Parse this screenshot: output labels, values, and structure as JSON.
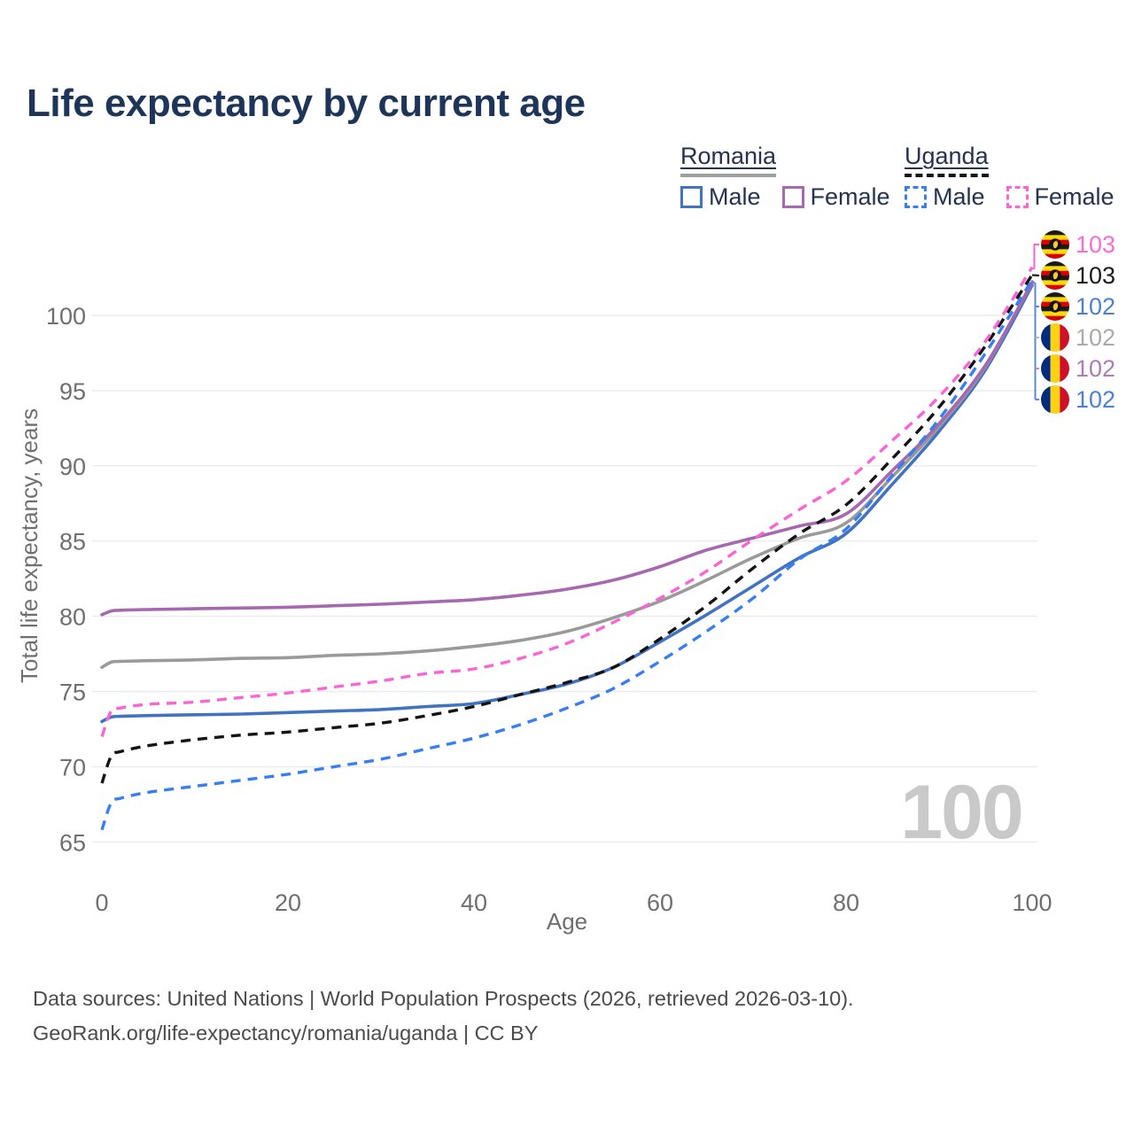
{
  "title": "Life expectancy by current age",
  "watermark": "100",
  "legend": {
    "position": "top-right",
    "groups": [
      {
        "label": "Romania",
        "line_style": "solid",
        "line_color": "#9e9e9e",
        "items": [
          {
            "label": "Male",
            "color": "#4273c0"
          },
          {
            "label": "Female",
            "color": "#a668ae"
          }
        ]
      },
      {
        "label": "Uganda",
        "line_style": "dashed",
        "line_color": "#141414",
        "items": [
          {
            "label": "Male",
            "color": "#377ef2"
          },
          {
            "label": "Female",
            "color": "#fa64d4"
          }
        ]
      }
    ]
  },
  "chart_data": {
    "type": "line",
    "title": "Life expectancy by current age",
    "xlabel": "Age",
    "ylabel": "Total life expectancy, years",
    "xlim": [
      0,
      100
    ],
    "ylim": [
      63.5,
      104.5
    ],
    "x_ticks": [
      0,
      20,
      40,
      60,
      80,
      100
    ],
    "y_ticks": [
      65,
      70,
      75,
      80,
      85,
      90,
      95,
      100
    ],
    "grid": true,
    "x": [
      0,
      1,
      2,
      5,
      10,
      15,
      20,
      25,
      30,
      35,
      40,
      45,
      50,
      55,
      60,
      65,
      70,
      75,
      80,
      85,
      90,
      95,
      100
    ],
    "series": [
      {
        "id": "romania_male",
        "name": "Romania Male",
        "country": "Romania",
        "sex": "male",
        "color": "#4273c0",
        "dash": false,
        "values": [
          73.0,
          73.3,
          73.35,
          73.4,
          73.45,
          73.5,
          73.6,
          73.7,
          73.8,
          74.0,
          74.2,
          74.8,
          75.5,
          76.6,
          78.3,
          80.1,
          82.0,
          83.9,
          85.5,
          88.8,
          92.3,
          96.4,
          102.0
        ]
      },
      {
        "id": "romania_female",
        "name": "Romania Female",
        "country": "Romania",
        "sex": "female",
        "color": "#a668ae",
        "dash": false,
        "values": [
          80.1,
          80.35,
          80.4,
          80.45,
          80.5,
          80.55,
          80.6,
          80.7,
          80.8,
          80.95,
          81.1,
          81.4,
          81.8,
          82.4,
          83.3,
          84.4,
          85.2,
          86.0,
          86.8,
          89.7,
          92.8,
          96.7,
          102.15
        ]
      },
      {
        "id": "romania_both",
        "name": "Romania Both sexes",
        "country": "Romania",
        "sex": "both",
        "color": "#9a9a9a",
        "dash": false,
        "values": [
          76.6,
          76.95,
          77.0,
          77.05,
          77.1,
          77.2,
          77.25,
          77.4,
          77.5,
          77.7,
          78.0,
          78.4,
          79.0,
          79.9,
          81.0,
          82.4,
          83.9,
          85.2,
          86.2,
          89.3,
          92.6,
          96.6,
          102.25
        ]
      },
      {
        "id": "uganda_male",
        "name": "Uganda Male",
        "country": "Uganda",
        "sex": "male",
        "color": "#377ef2",
        "dash": true,
        "values": [
          65.8,
          67.6,
          67.9,
          68.3,
          68.7,
          69.1,
          69.5,
          70.0,
          70.5,
          71.2,
          71.9,
          72.8,
          73.9,
          75.2,
          77.0,
          79.0,
          81.2,
          83.8,
          85.8,
          89.4,
          93.1,
          97.5,
          102.35
        ]
      },
      {
        "id": "uganda_female",
        "name": "Uganda Female",
        "country": "Uganda",
        "sex": "female",
        "color": "#fa64d4",
        "dash": true,
        "values": [
          72.0,
          73.7,
          73.9,
          74.15,
          74.3,
          74.6,
          74.9,
          75.3,
          75.7,
          76.2,
          76.5,
          77.2,
          78.2,
          79.6,
          81.2,
          83.0,
          85.1,
          87.1,
          89.0,
          91.7,
          94.6,
          98.3,
          103.2
        ]
      },
      {
        "id": "uganda_both",
        "name": "Uganda Both sexes",
        "country": "Uganda",
        "sex": "both",
        "color": "#141414",
        "dash": true,
        "values": [
          68.9,
          70.7,
          71.0,
          71.4,
          71.8,
          72.1,
          72.3,
          72.6,
          72.9,
          73.4,
          74.0,
          74.8,
          75.6,
          76.6,
          78.5,
          80.7,
          83.2,
          85.5,
          87.4,
          90.5,
          93.9,
          98.0,
          102.7
        ]
      }
    ]
  },
  "end_labels": [
    {
      "series": "uganda_female",
      "value": "103",
      "color": "#fa6bd4",
      "flag": "uganda-flag"
    },
    {
      "series": "uganda_both",
      "value": "103",
      "color": "#1a1a1a",
      "flag": "uganda-flag"
    },
    {
      "series": "uganda_male",
      "value": "102",
      "color": "#4a80d9",
      "flag": "uganda-flag"
    },
    {
      "series": "romania_both",
      "value": "102",
      "color": "#ababab",
      "flag": "romania-flag"
    },
    {
      "series": "romania_female",
      "value": "102",
      "color": "#ad7cb5",
      "flag": "romania-flag"
    },
    {
      "series": "romania_male",
      "value": "102",
      "color": "#4a80d9",
      "flag": "romania-flag"
    }
  ],
  "footer": {
    "line1": "Data sources: United Nations | World Population Prospects (2026, retrieved 2026-03-10).",
    "line2": "GeoRank.org/life-expectancy/romania/uganda | CC BY"
  }
}
